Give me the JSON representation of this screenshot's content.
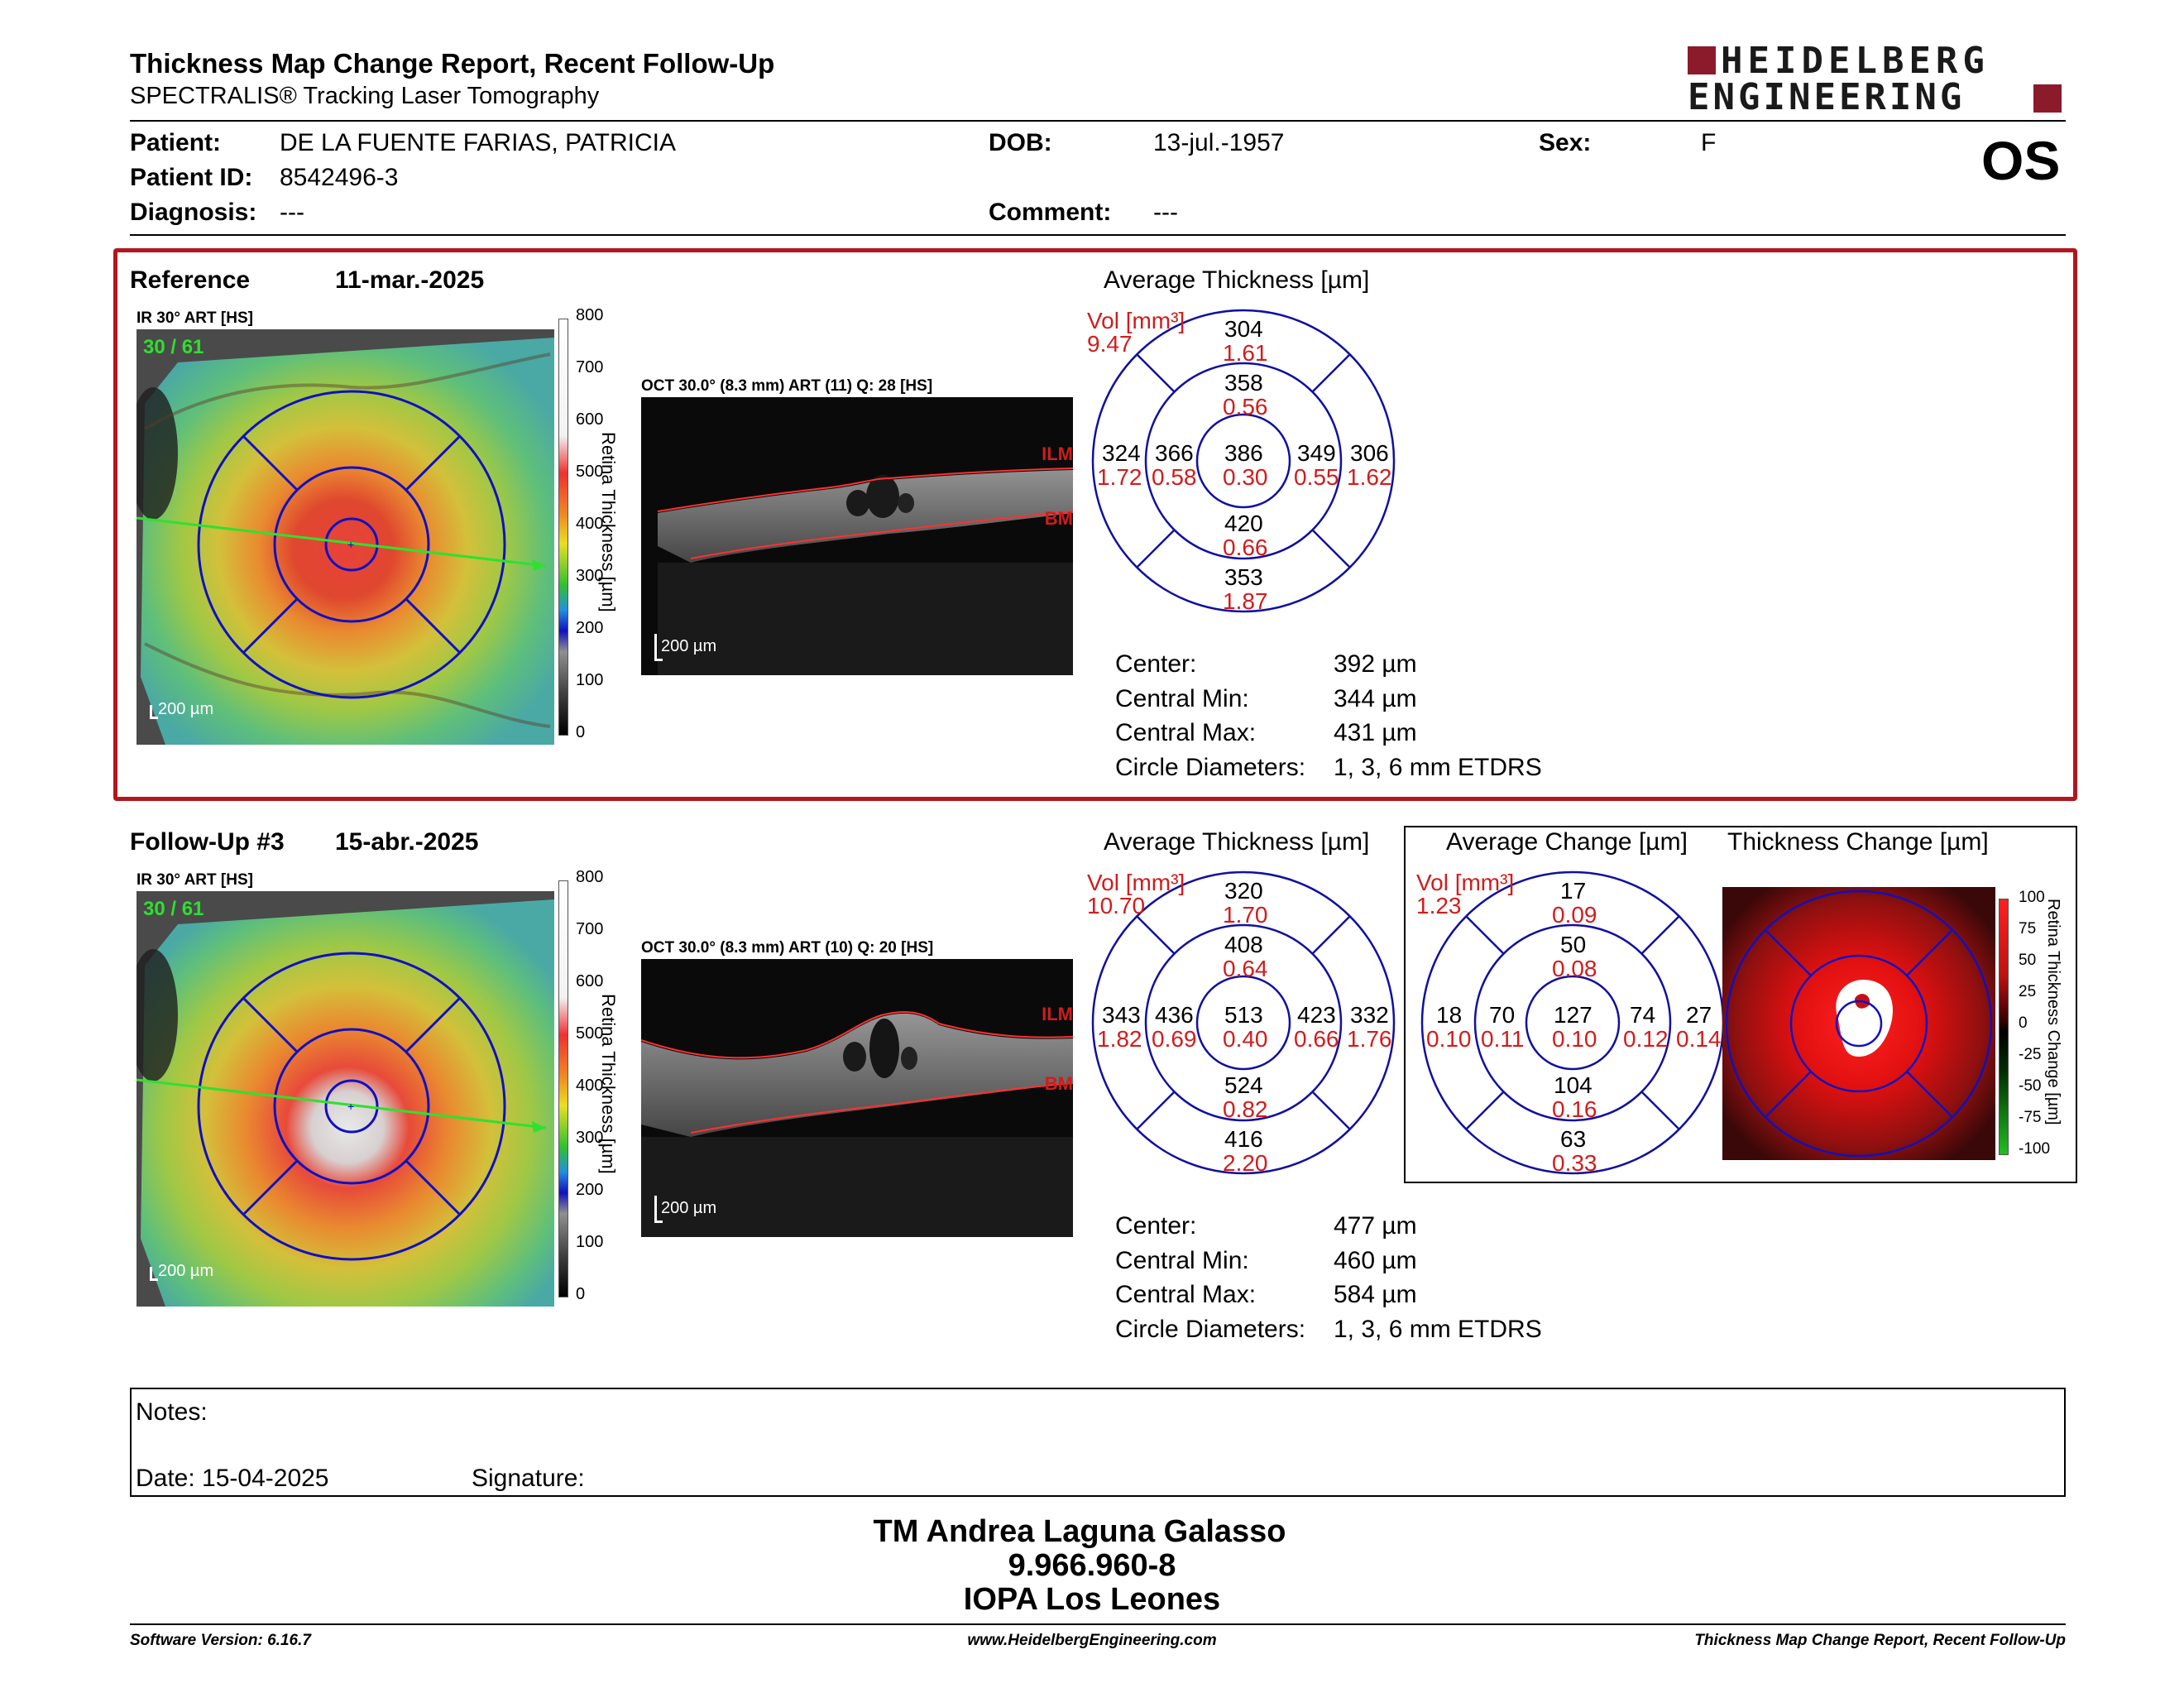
{
  "header": {
    "title": "Thickness Map Change Report, Recent Follow-Up",
    "subtitle": "SPECTRALIS® Tracking Laser Tomography",
    "logo_line1": "HEIDELBERG",
    "logo_line2": "ENGINEERING",
    "eye": "OS"
  },
  "patient": {
    "patient_label": "Patient:",
    "patient_value": "DE LA FUENTE FARIAS, PATRICIA",
    "id_label": "Patient ID:",
    "id_value": "8542496-3",
    "diag_label": "Diagnosis:",
    "diag_value": "---",
    "dob_label": "DOB:",
    "dob_value": "13-jul.-1957",
    "comment_label": "Comment:",
    "comment_value": "---",
    "sex_label": "Sex:",
    "sex_value": "F"
  },
  "reference": {
    "label": "Reference",
    "date": "11-mar.-2025",
    "ir_label": "IR 30° ART [HS]",
    "ir_counter": "30 / 61",
    "scale_bar": "200 µm",
    "oct_label": "OCT 30.0° (8.3 mm) ART (11) Q: 28 [HS]",
    "oct_scale": "200 µm",
    "ilm": "ILM",
    "bm": "BM",
    "avg_title": "Average Thickness [µm]",
    "vol_label": "Vol [mm³]",
    "vol_value": "9.47",
    "grid": {
      "outer_sup": [
        "304",
        "1.61"
      ],
      "inner_sup": [
        "358",
        "0.56"
      ],
      "outer_temp": [
        "324",
        "1.72"
      ],
      "inner_temp": [
        "366",
        "0.58"
      ],
      "center": [
        "386",
        "0.30"
      ],
      "inner_nas": [
        "349",
        "0.55"
      ],
      "outer_nas": [
        "306",
        "1.62"
      ],
      "inner_inf": [
        "420",
        "0.66"
      ],
      "outer_inf": [
        "353",
        "1.87"
      ]
    },
    "stats": [
      {
        "label": "Center:",
        "value": "392 µm"
      },
      {
        "label": "Central Min:",
        "value": "344 µm"
      },
      {
        "label": "Central Max:",
        "value": "431 µm"
      },
      {
        "label": "Circle Diameters:",
        "value": "1, 3, 6 mm ETDRS"
      }
    ]
  },
  "followup": {
    "label": "Follow-Up #3",
    "date": "15-abr.-2025",
    "ir_label": "IR 30° ART [HS]",
    "ir_counter": "30 / 61",
    "scale_bar": "200 µm",
    "oct_label": "OCT 30.0° (8.3 mm) ART (10) Q: 20 [HS]",
    "oct_scale": "200 µm",
    "ilm": "ILM",
    "bm": "BM",
    "avg_title": "Average Thickness [µm]",
    "vol_label": "Vol [mm³]",
    "vol_value": "10.70",
    "grid": {
      "outer_sup": [
        "320",
        "1.70"
      ],
      "inner_sup": [
        "408",
        "0.64"
      ],
      "outer_temp": [
        "343",
        "1.82"
      ],
      "inner_temp": [
        "436",
        "0.69"
      ],
      "center": [
        "513",
        "0.40"
      ],
      "inner_nas": [
        "423",
        "0.66"
      ],
      "outer_nas": [
        "332",
        "1.76"
      ],
      "inner_inf": [
        "524",
        "0.82"
      ],
      "outer_inf": [
        "416",
        "2.20"
      ]
    },
    "stats": [
      {
        "label": "Center:",
        "value": "477 µm"
      },
      {
        "label": "Central Min:",
        "value": "460 µm"
      },
      {
        "label": "Central Max:",
        "value": "584 µm"
      },
      {
        "label": "Circle Diameters:",
        "value": "1, 3, 6 mm ETDRS"
      }
    ]
  },
  "change": {
    "avg_title": "Average Change [µm]",
    "map_title": "Thickness Change [µm]",
    "vol_label": "Vol [mm³]",
    "vol_value": "1.23",
    "grid": {
      "outer_sup": [
        "17",
        "0.09"
      ],
      "inner_sup": [
        "50",
        "0.08"
      ],
      "outer_temp": [
        "18",
        "0.10"
      ],
      "inner_temp": [
        "70",
        "0.11"
      ],
      "center": [
        "127",
        "0.10"
      ],
      "inner_nas": [
        "74",
        "0.12"
      ],
      "outer_nas": [
        "27",
        "0.14"
      ],
      "inner_inf": [
        "104",
        "0.16"
      ],
      "outer_inf": [
        "63",
        "0.33"
      ]
    },
    "scale_ticks": [
      "100",
      "75",
      "50",
      "25",
      "0",
      "-25",
      "-50",
      "-75",
      "-100"
    ],
    "scale_title": "Retina Thickness Change [µm]"
  },
  "thickness_scale": {
    "ticks": [
      "800",
      "700",
      "600",
      "500",
      "400",
      "300",
      "200",
      "100",
      "0"
    ],
    "title": "Retina Thickness [µm]"
  },
  "notes": {
    "label": "Notes:",
    "date_label": "Date: 15-04-2025",
    "signature_label": "Signature:"
  },
  "signer": {
    "name": "TM Andrea Laguna Galasso",
    "id": "9.966.960-8",
    "org": "IOPA Los Leones"
  },
  "footer": {
    "version": "Software Version: 6.16.7",
    "url": "www.HeidelbergEngineering.com",
    "report": "Thickness Map Change Report, Recent Follow-Up"
  }
}
